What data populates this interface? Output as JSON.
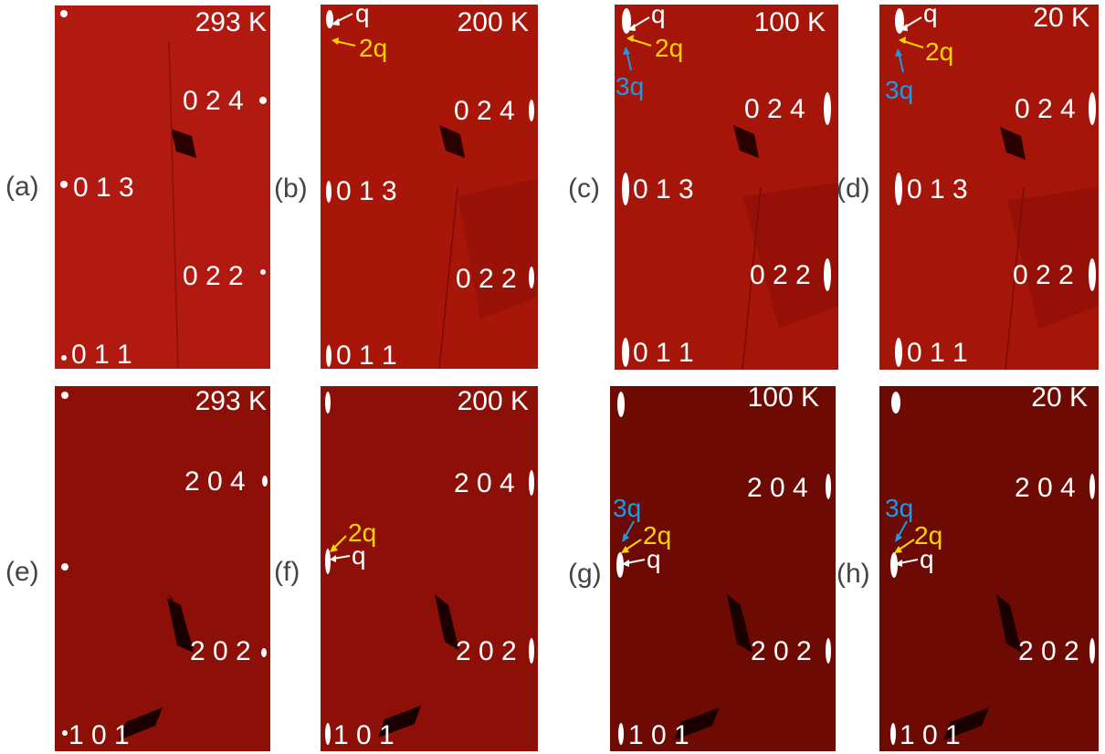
{
  "colors": {
    "panel_top": "#b01a10",
    "panel_bottom": "#7a0b05",
    "spot": "#ffffff",
    "q_white": "#ffffff",
    "q2_yellow": "#ffd400",
    "q3_blue": "#1e9ae6",
    "label_gray": "#444444"
  },
  "panels": [
    {
      "label": "(a)",
      "temp": "293 K",
      "hkl": [
        "0 2 4",
        "0 1 3",
        "0 2 2",
        "0 1 1"
      ],
      "arrows": []
    },
    {
      "label": "(b)",
      "temp": "200 K",
      "hkl": [
        "0 2 4",
        "0 1 3",
        "0 2 2",
        "0 1 1"
      ],
      "arrows": [
        "q",
        "2q"
      ]
    },
    {
      "label": "(c)",
      "temp": "100 K",
      "hkl": [
        "0 2 4",
        "0 1 3",
        "0 2 2",
        "0 1 1"
      ],
      "arrows": [
        "q",
        "2q",
        "3q"
      ]
    },
    {
      "label": "(d)",
      "temp": "20 K",
      "hkl": [
        "0 2 4",
        "0 1 3",
        "0 2 2",
        "0 1 1"
      ],
      "arrows": [
        "q",
        "2q",
        "3q"
      ]
    },
    {
      "label": "(e)",
      "temp": "293 K",
      "hkl": [
        "2 0 4",
        "2 0 2",
        "1 0 1"
      ],
      "arrows": []
    },
    {
      "label": "(f)",
      "temp": "200 K",
      "hkl": [
        "2 0 4",
        "2 0 2",
        "1 0 1"
      ],
      "arrows": [
        "2q",
        "q"
      ]
    },
    {
      "label": "(g)",
      "temp": "100 K",
      "hkl": [
        "2 0 4",
        "2 0 2",
        "1 0 1"
      ],
      "arrows": [
        "3q",
        "2q",
        "q"
      ]
    },
    {
      "label": "(h)",
      "temp": "20 K",
      "hkl": [
        "2 0 4",
        "2 0 2",
        "1 0 1"
      ],
      "arrows": [
        "3q",
        "2q",
        "q"
      ]
    }
  ]
}
